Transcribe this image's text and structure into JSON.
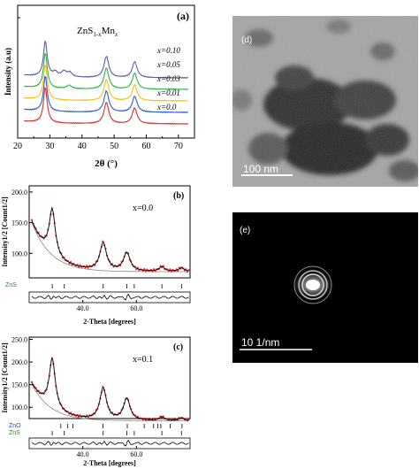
{
  "panel_a": {
    "label": "(a)",
    "compound_base": "ZnS",
    "compound_sub": "1-x",
    "compound_mn": "Mn",
    "compound_x": "x",
    "ylabel": "Intensity (a.u)",
    "xlabel": "2θ (°)",
    "legend": [
      "x=0.10",
      "x=0.05",
      "x=0.03",
      "x=0.01",
      "x=0.0"
    ],
    "colors": [
      "#5f5fa8",
      "#33b24a",
      "#f2c21b",
      "#2f5ecf",
      "#d9302a"
    ]
  },
  "panel_b": {
    "label": "(b)",
    "composition": "x=0.0",
    "ylabel": "Intensity1/2 [Count1/2]",
    "xlabel": "2-Theta [degrees]",
    "phase_label": "ZnS"
  },
  "panel_c": {
    "label": "(c)",
    "composition": "x=0.1",
    "ylabel": "Intensity1/2 [Count1/2]",
    "xlabel": "2-Theta [degrees]",
    "phase_label_1": "ZnO",
    "phase_label_2": "ZnS"
  },
  "panel_d": {
    "label": "(d)",
    "scale_bar": "100 nm"
  },
  "panel_e": {
    "label": "(e)",
    "scale_bar": "10 1/nm"
  },
  "chart_data": [
    {
      "type": "line",
      "title": "",
      "xlabel": "2θ (°)",
      "ylabel": "Intensity (a.u)",
      "xlim": [
        20,
        75
      ],
      "xticks": [
        20,
        30,
        40,
        50,
        60,
        70
      ],
      "series": [
        {
          "name": "x=0.0",
          "peaks": [
            28.6,
            47.6,
            56.4
          ]
        },
        {
          "name": "x=0.01",
          "peaks": [
            28.6,
            47.6,
            56.4
          ]
        },
        {
          "name": "x=0.03",
          "peaks": [
            28.6,
            47.6,
            56.4
          ]
        },
        {
          "name": "x=0.05",
          "peaks": [
            28.6,
            36.0,
            47.6,
            56.4
          ]
        },
        {
          "name": "x=0.10",
          "peaks": [
            28.6,
            31.7,
            34.4,
            36.2,
            47.6,
            56.4
          ]
        }
      ]
    },
    {
      "type": "line",
      "xlabel": "2-Theta [degrees]",
      "ylabel": "Intensity1/2 [Count1/2]",
      "xlim": [
        20,
        80
      ],
      "ylim": [
        60,
        210
      ],
      "xticks": [
        40.0,
        60.0
      ],
      "yticks": [
        100.0,
        150.0,
        200.0
      ],
      "peaks": [
        28.6,
        47.6,
        56.4
      ]
    },
    {
      "type": "line",
      "xlabel": "2-Theta [degrees]",
      "ylabel": "Intensity1/2 [Count1/2]",
      "xlim": [
        20,
        80
      ],
      "ylim": [
        75,
        255
      ],
      "xticks": [
        40.0,
        60.0
      ],
      "yticks": [
        100.0,
        150.0,
        200.0,
        250.0
      ],
      "peaks": [
        28.6,
        47.6,
        56.4
      ]
    }
  ]
}
